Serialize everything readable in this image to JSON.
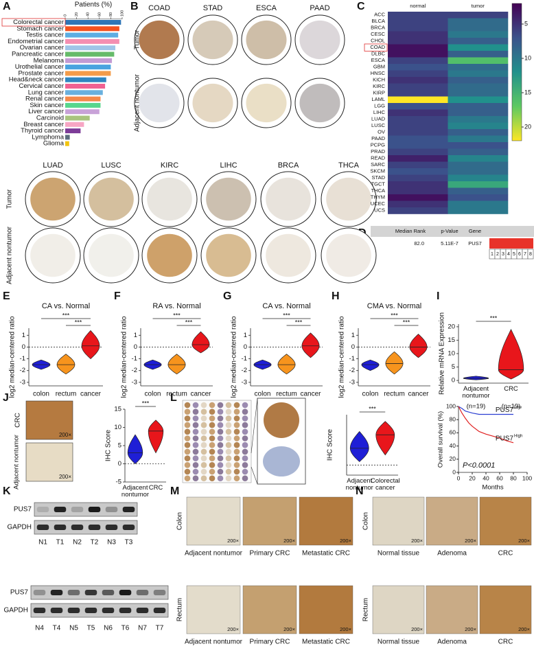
{
  "panel_labels": [
    "A",
    "B",
    "C",
    "D",
    "E",
    "F",
    "G",
    "H",
    "I",
    "J",
    "K",
    "L",
    "M",
    "N"
  ],
  "chart_data": [
    {
      "type": "bar",
      "orientation": "horizontal",
      "title": "Patients (%)",
      "categories": [
        "Colorectal cancer",
        "Stomach cancer",
        "Testis cancer",
        "Endometrial cancer",
        "Ovarian cancer",
        "Pancreatic cancer",
        "Melanoma",
        "Urothelial cancer",
        "Prostate cancer",
        "Head&neck cancer",
        "Cervical cancer",
        "Lung cancer",
        "Renal cancer",
        "Skin cancer",
        "Liver cancer",
        "Carcinoid",
        "Breast cancer",
        "Thyroid cancer",
        "Lymphoma",
        "Glioma"
      ],
      "values": [
        98,
        95,
        93,
        95,
        88,
        86,
        82,
        80,
        80,
        72,
        70,
        66,
        62,
        62,
        60,
        43,
        33,
        27,
        8,
        7
      ],
      "colors": [
        "#2e75b6",
        "#f4511e",
        "#5dade2",
        "#f48fb1",
        "#9fc5e8",
        "#66bb6a",
        "#c39bd3",
        "#4aa3df",
        "#f39c4a",
        "#2e86c1",
        "#f06292",
        "#6ab0de",
        "#f5894a",
        "#58d68d",
        "#c8a2d8",
        "#a9c47f",
        "#f7a6c4",
        "#7d3c98",
        "#5d6d7e",
        "#f1c40f"
      ],
      "xlim": [
        0,
        100
      ],
      "xticks": [
        0,
        20,
        40,
        60,
        80,
        100
      ]
    },
    {
      "type": "heatmap",
      "columns": [
        "normal",
        "tumor"
      ],
      "rows": [
        "ACC",
        "BLCA",
        "BRCA",
        "CESC",
        "CHOL",
        "COAD",
        "DLBC",
        "ESCA",
        "GBM",
        "HNSC",
        "KICH",
        "KIRC",
        "KIRP",
        "LAML",
        "LGG",
        "LIHC",
        "LUAD",
        "LUSC",
        "OV",
        "PAAD",
        "PCPG",
        "PRAD",
        "READ",
        "SARC",
        "SKCM",
        "STAD",
        "TGCT",
        "THCA",
        "THYM",
        "UCEC",
        "UCS"
      ],
      "values": [
        [
          6,
          6
        ],
        [
          6,
          9
        ],
        [
          6,
          9
        ],
        [
          5,
          10
        ],
        [
          5,
          8
        ],
        [
          3,
          12
        ],
        [
          3,
          8
        ],
        [
          6,
          16
        ],
        [
          7,
          9
        ],
        [
          6,
          10
        ],
        [
          5,
          8
        ],
        [
          6,
          9
        ],
        [
          6,
          9
        ],
        [
          22,
          12
        ],
        [
          7,
          8
        ],
        [
          5,
          8
        ],
        [
          6,
          10
        ],
        [
          6,
          11
        ],
        [
          6,
          8
        ],
        [
          7,
          10
        ],
        [
          7,
          7
        ],
        [
          6,
          8
        ],
        [
          4,
          11
        ],
        [
          6,
          9
        ],
        [
          7,
          9
        ],
        [
          6,
          11
        ],
        [
          5,
          14
        ],
        [
          5,
          8
        ],
        [
          3,
          7
        ],
        [
          5,
          10
        ],
        [
          6,
          10
        ]
      ],
      "colormap": "viridis",
      "clim": [
        2,
        22
      ],
      "cticks": [
        5,
        10,
        15,
        20
      ]
    },
    {
      "type": "violin",
      "title": "CA vs. Normal",
      "ylabel": "log2 median-centered ratio",
      "categories": [
        "colon",
        "rectum",
        "cancer"
      ],
      "colors": [
        "#1f1fd6",
        "#f7941d",
        "#e8161b"
      ],
      "ylim": [
        -3.3,
        1.6
      ],
      "yticks": [
        -3,
        -2,
        -1,
        0,
        1
      ],
      "hline": 0,
      "min": [
        -1.9,
        -2.3,
        -1.0
      ],
      "median": [
        -1.5,
        -1.5,
        0.1
      ],
      "max": [
        -1.1,
        -0.6,
        1.4
      ],
      "significance": [
        "***",
        "***"
      ]
    },
    {
      "type": "violin",
      "title": "RA vs. Normal",
      "ylabel": "log2 median-centered ratio",
      "categories": [
        "colon",
        "rectum",
        "cancer"
      ],
      "colors": [
        "#1f1fd6",
        "#f7941d",
        "#e8161b"
      ],
      "ylim": [
        -3.3,
        1.6
      ],
      "yticks": [
        -3,
        -2,
        -1,
        0,
        1
      ],
      "hline": 0,
      "min": [
        -1.9,
        -2.3,
        -0.5
      ],
      "median": [
        -1.5,
        -1.5,
        0.2
      ],
      "max": [
        -1.1,
        -0.6,
        1.3
      ],
      "significance": [
        "***",
        "***"
      ]
    },
    {
      "type": "violin",
      "title": "CA vs. Normal",
      "ylabel": "log2 median-centered ratio",
      "categories": [
        "colon",
        "rectum",
        "cancer"
      ],
      "colors": [
        "#1f1fd6",
        "#f7941d",
        "#e8161b"
      ],
      "ylim": [
        -3.3,
        1.6
      ],
      "yticks": [
        -3,
        -2,
        -1,
        0,
        1
      ],
      "hline": 0,
      "min": [
        -1.9,
        -2.3,
        -0.9
      ],
      "median": [
        -1.5,
        -1.5,
        0.1
      ],
      "max": [
        -1.1,
        -0.6,
        1.2
      ],
      "significance": [
        "***",
        "***"
      ]
    },
    {
      "type": "violin",
      "title": "CMA vs. Normal",
      "ylabel": "log2 median-centered ratio",
      "categories": [
        "colon",
        "rectum",
        "cancer"
      ],
      "colors": [
        "#1f1fd6",
        "#f7941d",
        "#e8161b"
      ],
      "ylim": [
        -3.3,
        1.6
      ],
      "yticks": [
        -3,
        -2,
        -1,
        0,
        1
      ],
      "hline": 0,
      "min": [
        -2.0,
        -2.3,
        -0.9
      ],
      "median": [
        -1.5,
        -1.4,
        0.0
      ],
      "max": [
        -1.1,
        -0.4,
        1.1
      ],
      "significance": [
        "***",
        "***"
      ]
    },
    {
      "type": "violin",
      "ylabel": "Relative mRNA Expression",
      "categories": [
        "Adjacent nontumor",
        "CRC"
      ],
      "n_labels": [
        "(n=19)",
        "(n=19)"
      ],
      "colors": [
        "#1f1fd6",
        "#e8161b"
      ],
      "ylim": [
        -1,
        21
      ],
      "yticks": [
        0,
        5,
        10,
        15,
        20
      ],
      "min": [
        0.2,
        0.5
      ],
      "median": [
        0.8,
        4
      ],
      "max": [
        1.6,
        19
      ],
      "significance": [
        "***"
      ]
    },
    {
      "type": "violin",
      "ylabel": "IHC Score",
      "categories": [
        "Adjacent nontumor",
        "CRC"
      ],
      "colors": [
        "#1f1fd6",
        "#e8161b"
      ],
      "ylim": [
        -5,
        15
      ],
      "yticks": [
        -5,
        0,
        5,
        10,
        15
      ],
      "hline": 0,
      "min": [
        0,
        3
      ],
      "median": [
        3,
        9
      ],
      "max": [
        8,
        12
      ],
      "significance": [
        "***"
      ]
    },
    {
      "type": "violin",
      "ylabel": "IHC Score",
      "categories": [
        "Adjacent nontumor",
        "Colorectal cancer"
      ],
      "colors": [
        "#1f1fd6",
        "#e8161b"
      ],
      "ylim": [
        -3,
        15
      ],
      "hline": 0,
      "min": [
        1,
        3
      ],
      "median": [
        5,
        9
      ],
      "max": [
        10,
        13
      ],
      "significance": [
        "***"
      ]
    },
    {
      "type": "line",
      "xlabel": "Months",
      "ylabel": "Overall survival (%)",
      "xlim": [
        0,
        100
      ],
      "xticks": [
        0,
        20,
        40,
        60,
        80,
        100
      ],
      "ylim": [
        0,
        100
      ],
      "yticks": [
        0,
        20,
        40,
        60,
        80,
        100
      ],
      "annotation": "P<0.0001",
      "series": [
        {
          "name": "PUS7",
          "name_sup": "Low",
          "color": "#2b3fd1",
          "x": [
            0,
            5,
            10,
            20,
            30,
            80
          ],
          "values": [
            100,
            97,
            93,
            90,
            88,
            88
          ]
        },
        {
          "name": "PUS7",
          "name_sup": "High",
          "color": "#e02020",
          "x": [
            0,
            5,
            10,
            15,
            20,
            30,
            40,
            50,
            60,
            70,
            80
          ],
          "values": [
            100,
            90,
            82,
            75,
            70,
            62,
            58,
            55,
            52,
            48,
            45
          ]
        }
      ]
    }
  ],
  "panel_B": {
    "top_columns": [
      "COAD",
      "STAD",
      "ESCA",
      "PAAD"
    ],
    "rows": [
      "Tumor",
      "Adjacent nontumor"
    ],
    "bottom_columns": [
      "LUAD",
      "LUSC",
      "KIRC",
      "LIHC",
      "BRCA",
      "THCA"
    ]
  },
  "panel_D": {
    "headers": [
      "Median Rank",
      "p-Value",
      "Gene"
    ],
    "row": [
      "82.0",
      "5.11E-7",
      "PUS7"
    ],
    "cells": [
      1,
      2,
      3,
      4,
      5,
      6,
      7,
      8
    ]
  },
  "panel_J": {
    "images": [
      "CRC",
      "Adjacent nontumor"
    ],
    "magnification": "200×"
  },
  "panel_K": {
    "rows_top": [
      "PUS7",
      "GAPDH"
    ],
    "lanes_top": [
      "N1",
      "T1",
      "N2",
      "T2",
      "N3",
      "T3"
    ],
    "rows_bottom": [
      "PUS7",
      "GAPDH"
    ],
    "lanes_bottom": [
      "N4",
      "T4",
      "N5",
      "T5",
      "N6",
      "T6",
      "N7",
      "T7"
    ]
  },
  "panel_M": {
    "rows": [
      "Colon",
      "Rectum"
    ],
    "columns": [
      "Adjacent nontumor",
      "Primary CRC",
      "Metastatic CRC"
    ],
    "magnification": "200×"
  },
  "panel_N": {
    "rows": [
      "Colon",
      "Rectum"
    ],
    "columns": [
      "Normal tissue",
      "Adenoma",
      "CRC"
    ],
    "magnification": "200×"
  }
}
